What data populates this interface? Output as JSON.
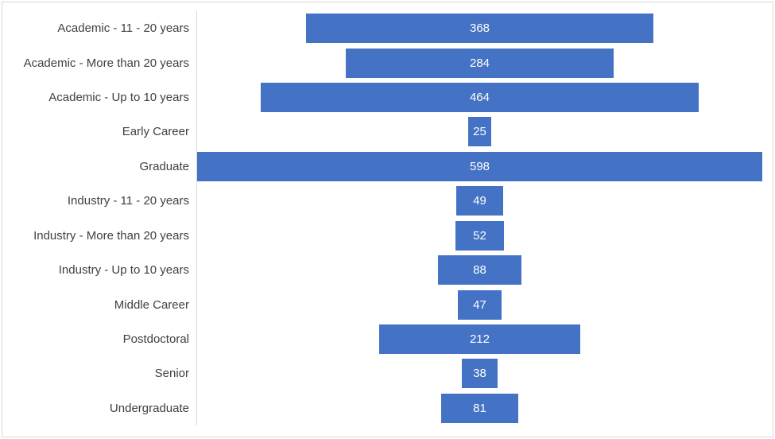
{
  "chart_data": {
    "type": "bar",
    "variant": "centered-funnel",
    "orientation": "horizontal",
    "title": "",
    "xlabel": "",
    "ylabel": "",
    "legend": "none",
    "grid": "off",
    "xlim": [
      0,
      598
    ],
    "categories": [
      "Academic - 11 - 20 years",
      "Academic - More than 20 years",
      "Academic - Up to 10 years",
      "Early Career",
      "Graduate",
      "Industry - 11 - 20 years",
      "Industry - More than 20 years",
      "Industry - Up to 10 years",
      "Middle Career",
      "Postdoctoral",
      "Senior",
      "Undergraduate"
    ],
    "values": [
      368,
      284,
      464,
      25,
      598,
      49,
      52,
      88,
      47,
      212,
      38,
      81
    ],
    "colors": {
      "bar": "#4472C4",
      "value_label": "#FFFFFF",
      "category_label": "#404040",
      "axis_line": "#D6D6D6",
      "chart_border": "#D9D9D9",
      "background": "#FFFFFF"
    }
  }
}
